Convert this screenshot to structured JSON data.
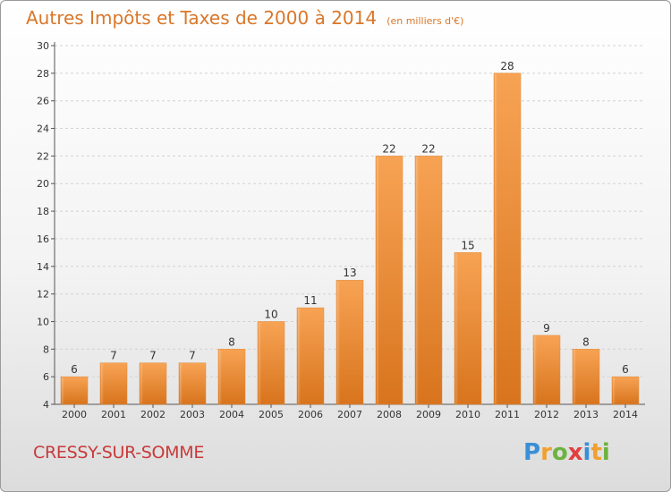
{
  "chart_data": {
    "type": "bar",
    "title": "Autres Impôts et Taxes de 2000 à 2014",
    "unit": "(en milliers d'€)",
    "categories": [
      "2000",
      "2001",
      "2002",
      "2003",
      "2004",
      "2005",
      "2006",
      "2007",
      "2008",
      "2009",
      "2010",
      "2011",
      "2012",
      "2013",
      "2014"
    ],
    "values": [
      6,
      7,
      7,
      7,
      8,
      10,
      11,
      13,
      22,
      22,
      15,
      28,
      9,
      8,
      6
    ],
    "ylim": [
      4,
      30
    ],
    "yticks": [
      4,
      6,
      8,
      10,
      12,
      14,
      16,
      18,
      20,
      22,
      24,
      26,
      28,
      30
    ],
    "grid": true,
    "bar_color": "#f0963e",
    "xlabel": "",
    "ylabel": ""
  },
  "location": "CRESSY-SUR-SOMME",
  "brand": {
    "letters": [
      "P",
      "r",
      "o",
      "x",
      "i",
      "t",
      "i"
    ],
    "colors": [
      "#3a8fd6",
      "#f0a030",
      "#6cb33f",
      "#e04040",
      "#3a8fd6",
      "#f0a030",
      "#6cb33f"
    ]
  }
}
